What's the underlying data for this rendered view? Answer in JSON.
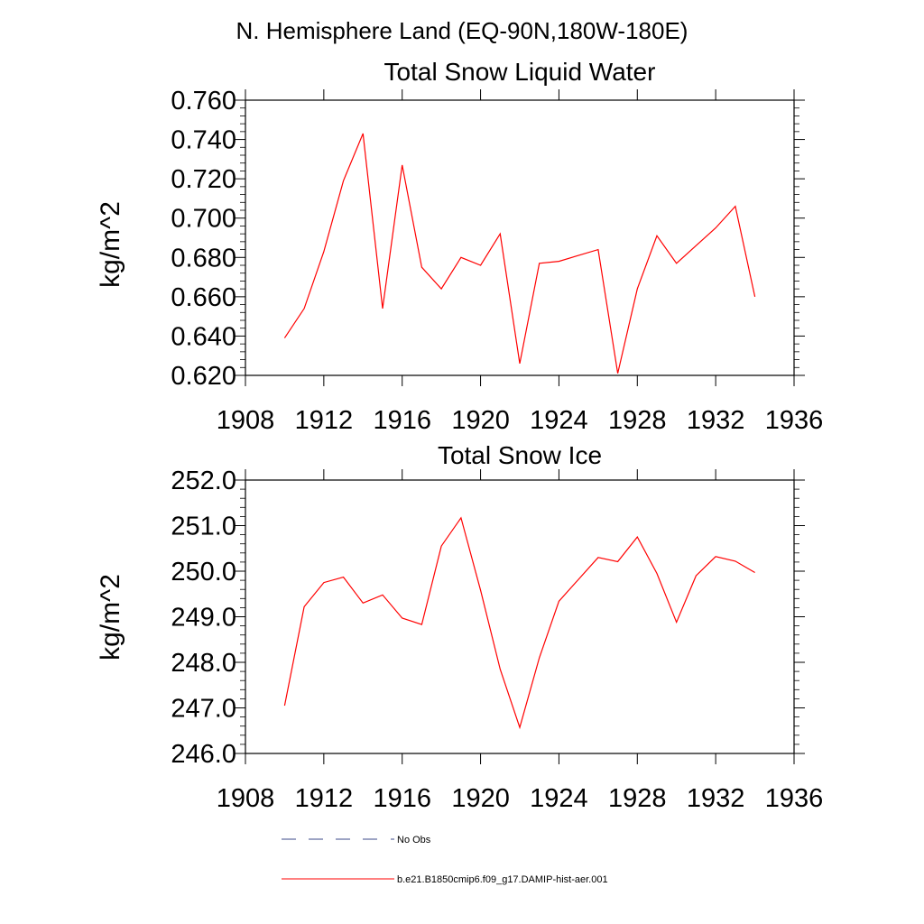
{
  "page_title": "N. Hemisphere Land (EQ-90N,180W-180E)",
  "chart_data": [
    {
      "type": "line",
      "title": "Total Snow Liquid Water",
      "xlabel": "",
      "ylabel": "kg/m^2",
      "xlim": [
        1908,
        1936
      ],
      "ylim": [
        0.62,
        0.76
      ],
      "x_ticks": [
        1908,
        1912,
        1916,
        1920,
        1924,
        1928,
        1932,
        1936
      ],
      "x_tick_labels": [
        "1908",
        "1912",
        "1916",
        "1920",
        "1924",
        "1928",
        "1932",
        "1936"
      ],
      "y_ticks": [
        0.62,
        0.64,
        0.66,
        0.68,
        0.7,
        0.72,
        0.74,
        0.76
      ],
      "y_tick_labels": [
        "0.620",
        "0.640",
        "0.660",
        "0.680",
        "0.700",
        "0.720",
        "0.740",
        "0.760"
      ],
      "grid": false,
      "series": [
        {
          "name": "b.e21.B1850cmip6.f09_g17.DAMIP-hist-aer.001",
          "color": "#ff0000",
          "x": [
            1910,
            1911,
            1912,
            1913,
            1914,
            1915,
            1916,
            1917,
            1918,
            1919,
            1920,
            1921,
            1922,
            1923,
            1924,
            1925,
            1926,
            1927,
            1928,
            1929,
            1930,
            1931,
            1932,
            1933,
            1934
          ],
          "y": [
            0.639,
            0.654,
            0.683,
            0.719,
            0.743,
            0.654,
            0.727,
            0.675,
            0.664,
            0.68,
            0.676,
            0.692,
            0.626,
            0.677,
            0.678,
            0.681,
            0.684,
            0.621,
            0.664,
            0.691,
            0.677,
            0.686,
            0.695,
            0.706,
            0.66
          ]
        }
      ]
    },
    {
      "type": "line",
      "title": "Total Snow Ice",
      "xlabel": "",
      "ylabel": "kg/m^2",
      "xlim": [
        1908,
        1936
      ],
      "ylim": [
        246.0,
        252.0
      ],
      "x_ticks": [
        1908,
        1912,
        1916,
        1920,
        1924,
        1928,
        1932,
        1936
      ],
      "x_tick_labels": [
        "1908",
        "1912",
        "1916",
        "1920",
        "1924",
        "1928",
        "1932",
        "1936"
      ],
      "y_ticks": [
        246.0,
        247.0,
        248.0,
        249.0,
        250.0,
        251.0,
        252.0
      ],
      "y_tick_labels": [
        "246.0",
        "247.0",
        "248.0",
        "249.0",
        "250.0",
        "251.0",
        "252.0"
      ],
      "grid": false,
      "series": [
        {
          "name": "b.e21.B1850cmip6.f09_g17.DAMIP-hist-aer.001",
          "color": "#ff0000",
          "x": [
            1910,
            1911,
            1912,
            1913,
            1914,
            1915,
            1916,
            1917,
            1918,
            1919,
            1920,
            1921,
            1922,
            1923,
            1924,
            1925,
            1926,
            1927,
            1928,
            1929,
            1930,
            1931,
            1932,
            1933,
            1934
          ],
          "y": [
            247.05,
            249.22,
            249.75,
            249.87,
            249.3,
            249.48,
            248.97,
            248.83,
            250.55,
            251.17,
            249.58,
            247.85,
            246.57,
            248.1,
            249.34,
            249.82,
            250.3,
            250.21,
            250.75,
            249.95,
            248.88,
            249.9,
            250.32,
            250.22,
            249.97
          ]
        }
      ]
    }
  ],
  "legend": [
    {
      "label": "No Obs",
      "color": "#3b4a8a",
      "style": "dashed"
    },
    {
      "label": "b.e21.B1850cmip6.f09_g17.DAMIP-hist-aer.001",
      "color": "#ff0000",
      "style": "solid"
    }
  ]
}
